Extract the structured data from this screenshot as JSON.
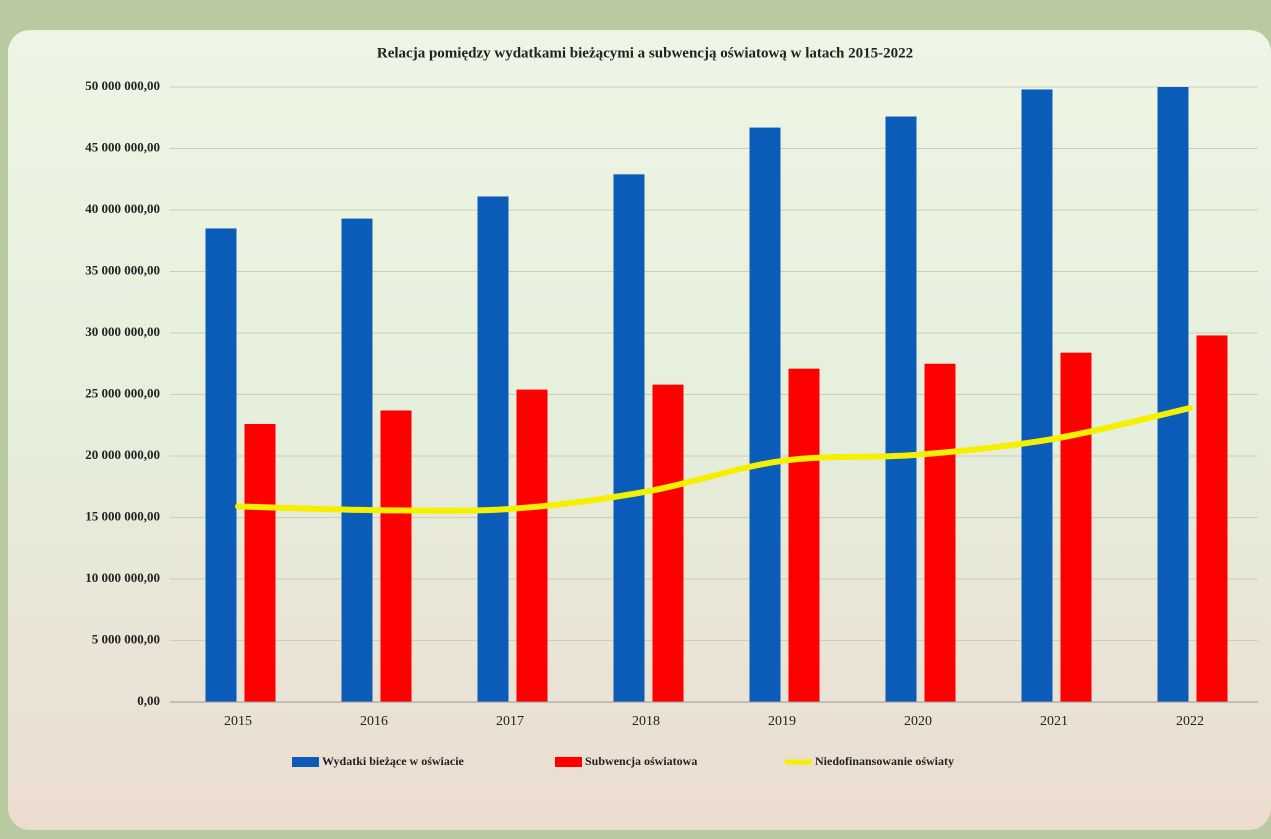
{
  "chart_data": {
    "type": "bar",
    "title": "Relacja pomiędzy wydatkami bieżącymi a subwencją oświatową w latach 2015-2022",
    "categories": [
      "2015",
      "2016",
      "2017",
      "2018",
      "2019",
      "2020",
      "2021",
      "2022"
    ],
    "series": [
      {
        "name": "Wydatki bieżące w oświacie",
        "color": "#0a5cb8",
        "type": "bar",
        "values": [
          38500000,
          39300000,
          41100000,
          42900000,
          46700000,
          47600000,
          49800000,
          50000000
        ]
      },
      {
        "name": "Subwencja oświatowa",
        "color": "#ff0000",
        "type": "bar",
        "values": [
          22600000,
          23700000,
          25400000,
          25800000,
          27100000,
          27500000,
          28400000,
          29800000
        ]
      },
      {
        "name": "Niedofinansowanie oświaty",
        "color": "#f5f000",
        "type": "line",
        "values": [
          15900000,
          15600000,
          15700000,
          17100000,
          19600000,
          20100000,
          21400000,
          23900000
        ]
      }
    ],
    "ylim": [
      0,
      50000000
    ],
    "yticks": [
      {
        "value": 0,
        "label": "0,00"
      },
      {
        "value": 5000000,
        "label": "5 000 000,00"
      },
      {
        "value": 10000000,
        "label": "10 000 000,00"
      },
      {
        "value": 15000000,
        "label": "15 000 000,00"
      },
      {
        "value": 20000000,
        "label": "20 000 000,00"
      },
      {
        "value": 25000000,
        "label": "25 000 000,00"
      },
      {
        "value": 30000000,
        "label": "30 000 000,00"
      },
      {
        "value": 35000000,
        "label": "35 000 000,00"
      },
      {
        "value": 40000000,
        "label": "40 000 000,00"
      },
      {
        "value": 45000000,
        "label": "45 000 000,00"
      },
      {
        "value": 50000000,
        "label": "50 000 000,00"
      }
    ],
    "grid": true,
    "legend": "bottom"
  }
}
